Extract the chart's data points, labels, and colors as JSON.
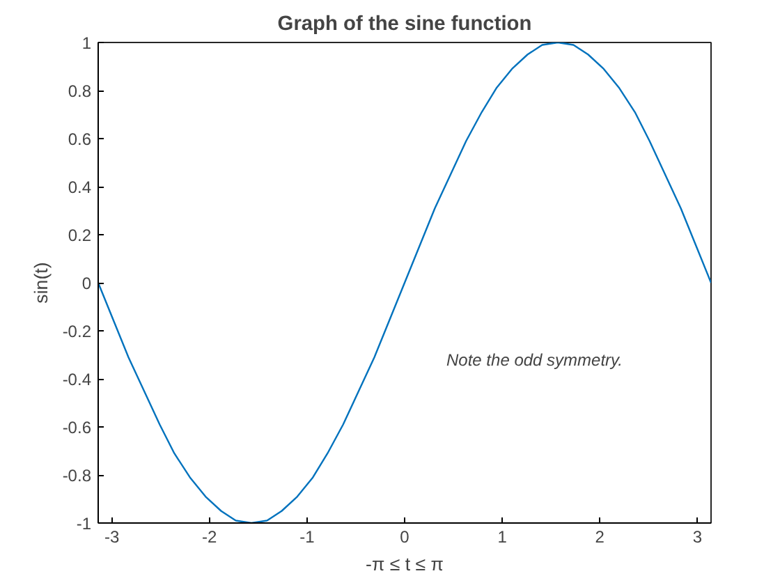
{
  "chart_data": {
    "type": "line",
    "title": "Graph of the sine function",
    "xlabel": "-π ≤ t ≤ π",
    "ylabel": "sin(t)",
    "annotations": [
      "Note the odd symmetry."
    ],
    "x": [
      -3.14,
      -2.98,
      -2.83,
      -2.67,
      -2.51,
      -2.36,
      -2.2,
      -2.04,
      -1.88,
      -1.73,
      -1.57,
      -1.41,
      -1.26,
      -1.1,
      -0.94,
      -0.79,
      -0.63,
      -0.47,
      -0.31,
      -0.16,
      0,
      0.16,
      0.31,
      0.47,
      0.63,
      0.79,
      0.94,
      1.1,
      1.26,
      1.41,
      1.57,
      1.73,
      1.88,
      2.04,
      2.2,
      2.36,
      2.51,
      2.67,
      2.83,
      2.98,
      3.14
    ],
    "series": [
      {
        "color": "#0072bd",
        "values": [
          0,
          -0.16,
          -0.31,
          -0.45,
          -0.59,
          -0.71,
          -0.81,
          -0.89,
          -0.95,
          -0.99,
          -1,
          -0.99,
          -0.95,
          -0.89,
          -0.81,
          -0.71,
          -0.59,
          -0.45,
          -0.31,
          -0.16,
          0,
          0.16,
          0.31,
          0.45,
          0.59,
          0.71,
          0.81,
          0.89,
          0.95,
          0.99,
          1,
          0.99,
          0.95,
          0.89,
          0.81,
          0.71,
          0.59,
          0.45,
          0.31,
          0.16,
          0
        ]
      }
    ],
    "xlim": [
      -3.14,
      3.14
    ],
    "ylim": [
      -1,
      1
    ],
    "xticks": [
      -3,
      -2,
      -1,
      0,
      1,
      2,
      3
    ],
    "yticks": [
      -1,
      -0.8,
      -0.6,
      -0.4,
      -0.2,
      0,
      0.2,
      0.4,
      0.6,
      0.8,
      1
    ],
    "grid": false
  }
}
